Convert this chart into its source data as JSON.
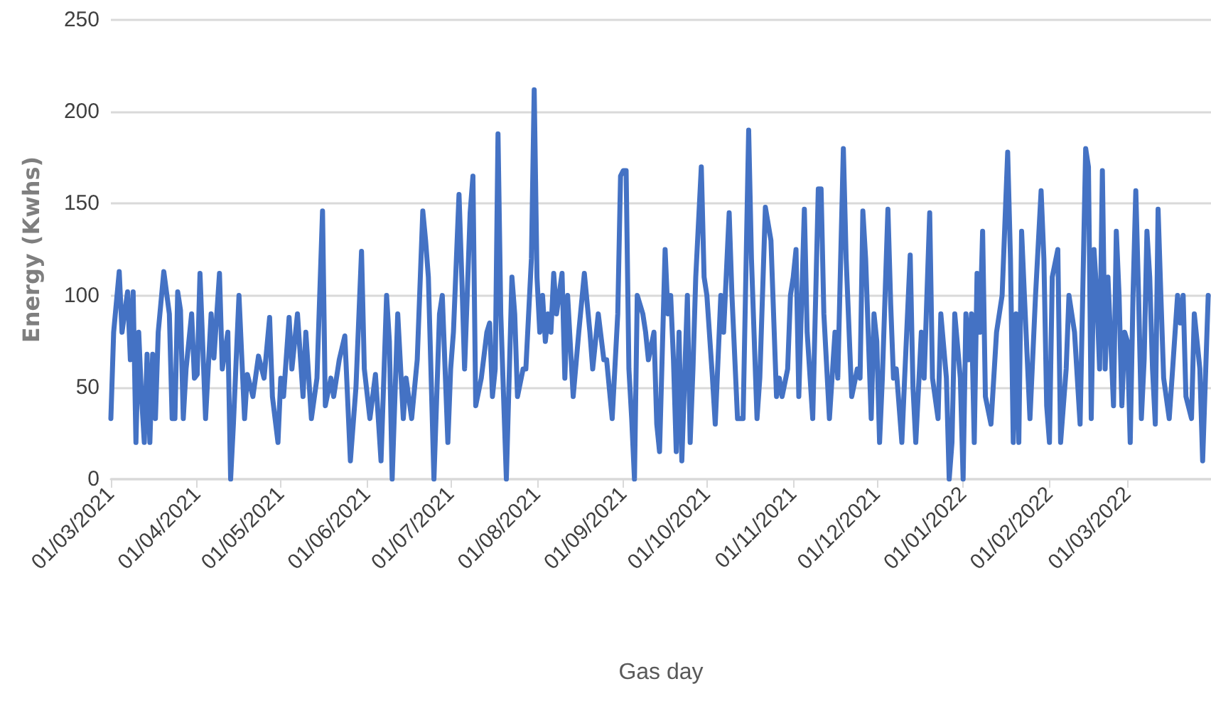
{
  "chart_data": {
    "type": "line",
    "xlabel": "Gas day",
    "ylabel": "Energy (Kwhs)",
    "xlim": [
      "2021-03-01",
      "2022-03-31"
    ],
    "ylim": [
      0,
      250
    ],
    "yticks": [
      0,
      50,
      100,
      150,
      200,
      250
    ],
    "xticks": [
      {
        "value": "2021-03-01",
        "label": "01/03/2021"
      },
      {
        "value": "2021-04-01",
        "label": "01/04/2021"
      },
      {
        "value": "2021-05-01",
        "label": "01/05/2021"
      },
      {
        "value": "2021-06-01",
        "label": "01/06/2021"
      },
      {
        "value": "2021-07-01",
        "label": "01/07/2021"
      },
      {
        "value": "2021-08-01",
        "label": "01/08/2021"
      },
      {
        "value": "2021-09-01",
        "label": "01/09/2021"
      },
      {
        "value": "2021-10-01",
        "label": "01/10/2021"
      },
      {
        "value": "2021-11-01",
        "label": "01/11/2021"
      },
      {
        "value": "2021-12-01",
        "label": "01/12/2021"
      },
      {
        "value": "2022-01-01",
        "label": "01/01/2022"
      },
      {
        "value": "2022-02-01",
        "label": "01/02/2022"
      },
      {
        "value": "2022-03-01",
        "label": "01/03/2022"
      }
    ],
    "grid": "y",
    "marker": "none",
    "line_style": "solid",
    "series": [
      {
        "color": "#4472c4",
        "x": [
          "2021-03-01",
          "2021-03-02",
          "2021-03-04",
          "2021-03-05",
          "2021-03-07",
          "2021-03-08",
          "2021-03-09",
          "2021-03-10",
          "2021-03-11",
          "2021-03-12",
          "2021-03-13",
          "2021-03-14",
          "2021-03-15",
          "2021-03-16",
          "2021-03-17",
          "2021-03-18",
          "2021-03-20",
          "2021-03-22",
          "2021-03-23",
          "2021-03-24",
          "2021-03-25",
          "2021-03-26",
          "2021-03-27",
          "2021-03-28",
          "2021-03-30",
          "2021-03-31",
          "2021-04-01",
          "2021-04-02",
          "2021-04-04",
          "2021-04-06",
          "2021-04-07",
          "2021-04-09",
          "2021-04-10",
          "2021-04-12",
          "2021-04-13",
          "2021-04-14",
          "2021-04-16",
          "2021-04-18",
          "2021-04-19",
          "2021-04-21",
          "2021-04-23",
          "2021-04-25",
          "2021-04-27",
          "2021-04-28",
          "2021-04-30",
          "2021-05-01",
          "2021-05-02",
          "2021-05-04",
          "2021-05-05",
          "2021-05-07",
          "2021-05-09",
          "2021-05-10",
          "2021-05-12",
          "2021-05-14",
          "2021-05-16",
          "2021-05-17",
          "2021-05-19",
          "2021-05-20",
          "2021-05-22",
          "2021-05-24",
          "2021-05-26",
          "2021-05-28",
          "2021-05-30",
          "2021-05-31",
          "2021-06-02",
          "2021-06-04",
          "2021-06-06",
          "2021-06-08",
          "2021-06-09",
          "2021-06-10",
          "2021-06-12",
          "2021-06-14",
          "2021-06-15",
          "2021-06-17",
          "2021-06-19",
          "2021-06-21",
          "2021-06-22",
          "2021-06-23",
          "2021-06-25",
          "2021-06-27",
          "2021-06-28",
          "2021-06-30",
          "2021-07-01",
          "2021-07-02",
          "2021-07-04",
          "2021-07-05",
          "2021-07-06",
          "2021-07-08",
          "2021-07-09",
          "2021-07-10",
          "2021-07-12",
          "2021-07-14",
          "2021-07-15",
          "2021-07-16",
          "2021-07-17",
          "2021-07-18",
          "2021-07-19",
          "2021-07-21",
          "2021-07-23",
          "2021-07-24",
          "2021-07-25",
          "2021-07-27",
          "2021-07-28",
          "2021-07-30",
          "2021-07-31",
          "2021-08-01",
          "2021-08-02",
          "2021-08-03",
          "2021-08-04",
          "2021-08-05",
          "2021-08-06",
          "2021-08-07",
          "2021-08-08",
          "2021-08-10",
          "2021-08-11",
          "2021-08-12",
          "2021-08-14",
          "2021-08-16",
          "2021-08-18",
          "2021-08-20",
          "2021-08-21",
          "2021-08-23",
          "2021-08-25",
          "2021-08-26",
          "2021-08-28",
          "2021-08-30",
          "2021-08-31",
          "2021-09-01",
          "2021-09-02",
          "2021-09-03",
          "2021-09-04",
          "2021-09-05",
          "2021-09-06",
          "2021-09-08",
          "2021-09-09",
          "2021-09-10",
          "2021-09-12",
          "2021-09-13",
          "2021-09-14",
          "2021-09-16",
          "2021-09-17",
          "2021-09-18",
          "2021-09-19",
          "2021-09-20",
          "2021-09-21",
          "2021-09-22",
          "2021-09-24",
          "2021-09-25",
          "2021-09-26",
          "2021-09-27",
          "2021-09-29",
          "2021-09-30",
          "2021-10-01",
          "2021-10-03",
          "2021-10-04",
          "2021-10-06",
          "2021-10-07",
          "2021-10-09",
          "2021-10-10",
          "2021-10-12",
          "2021-10-14",
          "2021-10-16",
          "2021-10-17",
          "2021-10-19",
          "2021-10-20",
          "2021-10-22",
          "2021-10-24",
          "2021-10-26",
          "2021-10-27",
          "2021-10-28",
          "2021-10-30",
          "2021-10-31",
          "2021-11-01",
          "2021-11-02",
          "2021-11-03",
          "2021-11-05",
          "2021-11-06",
          "2021-11-08",
          "2021-11-10",
          "2021-11-11",
          "2021-11-12",
          "2021-11-14",
          "2021-11-16",
          "2021-11-17",
          "2021-11-19",
          "2021-11-20",
          "2021-11-22",
          "2021-11-24",
          "2021-11-25",
          "2021-11-26",
          "2021-11-27",
          "2021-11-29",
          "2021-11-30",
          "2021-12-01",
          "2021-12-02",
          "2021-12-03",
          "2021-12-05",
          "2021-12-06",
          "2021-12-07",
          "2021-12-08",
          "2021-12-10",
          "2021-12-11",
          "2021-12-13",
          "2021-12-14",
          "2021-12-15",
          "2021-12-17",
          "2021-12-18",
          "2021-12-20",
          "2021-12-21",
          "2021-12-23",
          "2021-12-24",
          "2021-12-26",
          "2021-12-27",
          "2021-12-28",
          "2021-12-29",
          "2021-12-31",
          "2022-01-01",
          "2022-01-02",
          "2022-01-03",
          "2022-01-04",
          "2022-01-05",
          "2022-01-06",
          "2022-01-07",
          "2022-01-08",
          "2022-01-09",
          "2022-01-11",
          "2022-01-13",
          "2022-01-15",
          "2022-01-17",
          "2022-01-18",
          "2022-01-19",
          "2022-01-20",
          "2022-01-21",
          "2022-01-22",
          "2022-01-23",
          "2022-01-25",
          "2022-01-27",
          "2022-01-29",
          "2022-01-30",
          "2022-01-31",
          "2022-02-01",
          "2022-02-02",
          "2022-02-04",
          "2022-02-05",
          "2022-02-07",
          "2022-02-08",
          "2022-02-10",
          "2022-02-12",
          "2022-02-14",
          "2022-02-15",
          "2022-02-16",
          "2022-02-17",
          "2022-02-18",
          "2022-02-19",
          "2022-02-20",
          "2022-02-21",
          "2022-02-22",
          "2022-02-24",
          "2022-02-25",
          "2022-02-26",
          "2022-02-27",
          "2022-02-28",
          "2022-03-01",
          "2022-03-02",
          "2022-03-03",
          "2022-03-04",
          "2022-03-05",
          "2022-03-06",
          "2022-03-07",
          "2022-03-08",
          "2022-03-09",
          "2022-03-10",
          "2022-03-11",
          "2022-03-12",
          "2022-03-13",
          "2022-03-14",
          "2022-03-16",
          "2022-03-17",
          "2022-03-19",
          "2022-03-20",
          "2022-03-21",
          "2022-03-22",
          "2022-03-24",
          "2022-03-25",
          "2022-03-27",
          "2022-03-28",
          "2022-03-30"
        ],
        "values": [
          33,
          80,
          113,
          80,
          102,
          65,
          102,
          20,
          80,
          45,
          20,
          68,
          20,
          68,
          33,
          80,
          113,
          90,
          33,
          33,
          102,
          92,
          33,
          60,
          90,
          55,
          57,
          112,
          33,
          90,
          66,
          112,
          60,
          80,
          0,
          30,
          100,
          33,
          57,
          45,
          67,
          55,
          88,
          45,
          20,
          55,
          45,
          88,
          60,
          90,
          45,
          80,
          33,
          55,
          146,
          40,
          55,
          45,
          65,
          78,
          10,
          50,
          124,
          60,
          33,
          57,
          10,
          100,
          75,
          0,
          90,
          33,
          55,
          33,
          65,
          146,
          130,
          110,
          0,
          90,
          100,
          20,
          60,
          80,
          155,
          110,
          60,
          145,
          165,
          40,
          55,
          80,
          85,
          45,
          60,
          188,
          90,
          0,
          110,
          90,
          45,
          60,
          60,
          120,
          212,
          110,
          80,
          100,
          75,
          90,
          80,
          112,
          90,
          112,
          55,
          100,
          45,
          80,
          112,
          80,
          60,
          90,
          65,
          65,
          33,
          90,
          165,
          168,
          168,
          60,
          33,
          0,
          100,
          90,
          80,
          65,
          80,
          30,
          15,
          125,
          90,
          100,
          65,
          15,
          80,
          10,
          100,
          20,
          60,
          110,
          170,
          110,
          100,
          55,
          30,
          100,
          80,
          145,
          100,
          33,
          33,
          190,
          120,
          33,
          55,
          148,
          130,
          45,
          55,
          45,
          60,
          100,
          110,
          125,
          45,
          147,
          80,
          33,
          158,
          158,
          90,
          33,
          80,
          55,
          180,
          120,
          45,
          60,
          55,
          146,
          120,
          33,
          90,
          75,
          20,
          55,
          147,
          95,
          55,
          60,
          20,
          55,
          122,
          50,
          20,
          80,
          55,
          145,
          55,
          33,
          90,
          55,
          0,
          20,
          90,
          55,
          0,
          90,
          65,
          90,
          20,
          112,
          80,
          135,
          45,
          30,
          80,
          100,
          178,
          120,
          20,
          90,
          20,
          135,
          100,
          33,
          100,
          157,
          120,
          40,
          20,
          110,
          125,
          20,
          60,
          100,
          80,
          30,
          180,
          170,
          33,
          125,
          100,
          60,
          168,
          60,
          110,
          40,
          135,
          100,
          40,
          80,
          75,
          20,
          100,
          157,
          100,
          33,
          65,
          135,
          110,
          60,
          30,
          147,
          100,
          55,
          33,
          55,
          100,
          85,
          100,
          45,
          33,
          90,
          60,
          10,
          100
        ]
      }
    ]
  }
}
